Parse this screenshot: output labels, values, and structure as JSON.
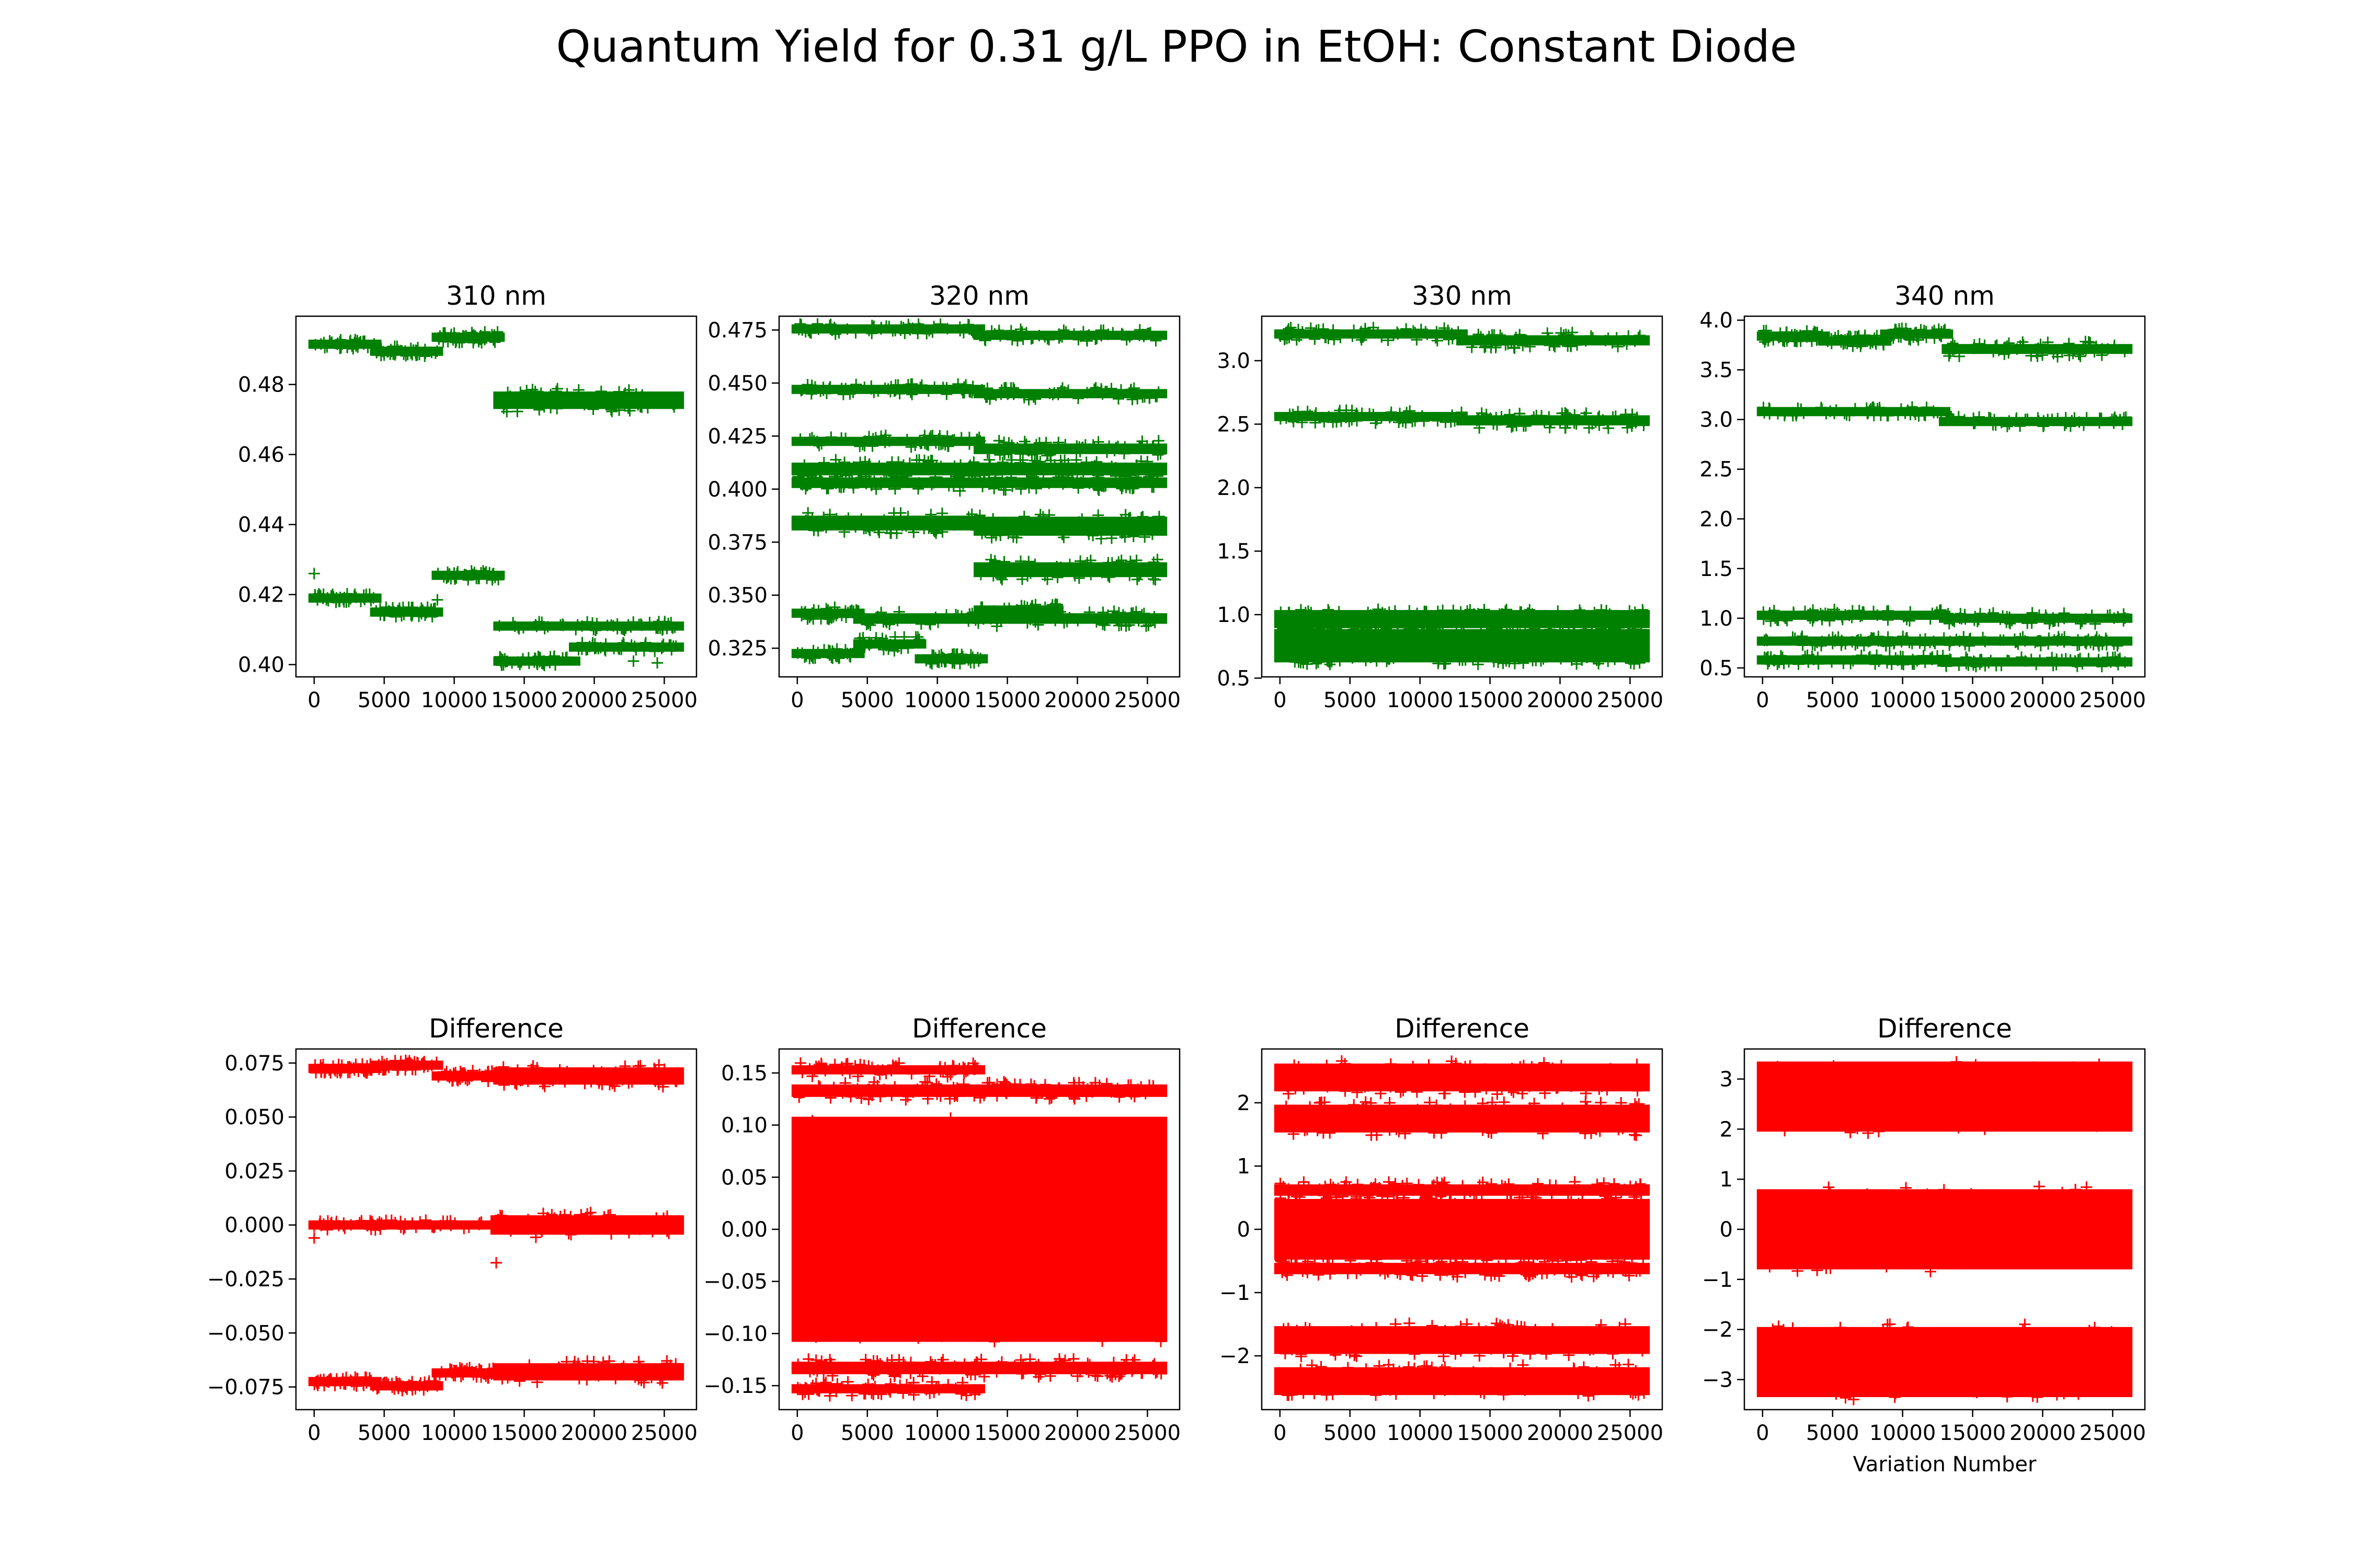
{
  "figure": {
    "title": "Quantum Yield for 0.31 g/L PPO in EtOH: Constant Diode",
    "colors": {
      "top": "#008000",
      "bottom": "#ff0000",
      "axes": "#000000"
    },
    "marker": "plus"
  },
  "chart_data": [
    {
      "type": "scatter",
      "title": "310 nm",
      "color": "#008000",
      "xlim": [
        -1300,
        27300
      ],
      "ylim": [
        0.3965,
        0.4995
      ],
      "xticks": [
        0,
        5000,
        10000,
        15000,
        20000,
        25000
      ],
      "xtick_labels": [
        "0",
        "5000",
        "10000",
        "15000",
        "20000",
        "25000"
      ],
      "yticks": [
        0.4,
        0.42,
        0.44,
        0.46,
        0.48
      ],
      "ytick_labels": [
        "0.40",
        "0.42",
        "0.44",
        "0.46",
        "0.48"
      ],
      "xlabel": "",
      "bands": [
        {
          "x": [
            0,
            4400
          ],
          "y": 0.4915,
          "spread": 0.0005
        },
        {
          "x": [
            4400,
            8800
          ],
          "y": 0.4895,
          "spread": 0.0006
        },
        {
          "x": [
            8800,
            13200
          ],
          "y": 0.4935,
          "spread": 0.0008
        },
        {
          "x": [
            13200,
            26000
          ],
          "y": 0.4755,
          "spread": 0.0025
        },
        {
          "x": [
            0,
            4400
          ],
          "y": 0.419,
          "spread": 0.0005
        },
        {
          "x": [
            4400,
            8800
          ],
          "y": 0.415,
          "spread": 0.0006
        },
        {
          "x": [
            8800,
            13200
          ],
          "y": 0.4255,
          "spread": 0.0005
        },
        {
          "x": [
            13200,
            26000
          ],
          "y": 0.411,
          "spread": 0.0005
        },
        {
          "x": [
            13200,
            18600
          ],
          "y": 0.401,
          "spread": 0.0006
        },
        {
          "x": [
            18600,
            26000
          ],
          "y": 0.405,
          "spread": 0.0005
        }
      ],
      "outliers": [
        {
          "x": 0,
          "y": 0.426
        },
        {
          "x": 8800,
          "y": 0.4185
        },
        {
          "x": 22800,
          "y": 0.401
        },
        {
          "x": 24500,
          "y": 0.4005
        }
      ]
    },
    {
      "type": "scatter",
      "title": "320 nm",
      "color": "#008000",
      "xlim": [
        -1300,
        27300
      ],
      "ylim": [
        0.3115,
        0.4815
      ],
      "xticks": [
        0,
        5000,
        10000,
        15000,
        20000,
        25000
      ],
      "xtick_labels": [
        "0",
        "5000",
        "10000",
        "15000",
        "20000",
        "25000"
      ],
      "yticks": [
        0.325,
        0.35,
        0.375,
        0.4,
        0.425,
        0.45,
        0.475
      ],
      "ytick_labels": [
        "0.325",
        "0.350",
        "0.375",
        "0.400",
        "0.425",
        "0.450",
        "0.475"
      ],
      "xlabel": "",
      "bands": [
        {
          "x": [
            0,
            13000
          ],
          "y": 0.4755,
          "spread": 0.0012
        },
        {
          "x": [
            13000,
            26000
          ],
          "y": 0.4725,
          "spread": 0.0015
        },
        {
          "x": [
            0,
            13000
          ],
          "y": 0.447,
          "spread": 0.0012
        },
        {
          "x": [
            13000,
            26000
          ],
          "y": 0.445,
          "spread": 0.0015
        },
        {
          "x": [
            0,
            13000
          ],
          "y": 0.4225,
          "spread": 0.0015
        },
        {
          "x": [
            13000,
            26000
          ],
          "y": 0.419,
          "spread": 0.0025
        },
        {
          "x": [
            0,
            26000
          ],
          "y": 0.4095,
          "spread": 0.003
        },
        {
          "x": [
            0,
            26000
          ],
          "y": 0.403,
          "spread": 0.0025
        },
        {
          "x": [
            0,
            13000
          ],
          "y": 0.384,
          "spread": 0.0035
        },
        {
          "x": [
            13000,
            26000
          ],
          "y": 0.3825,
          "spread": 0.0045
        },
        {
          "x": [
            13000,
            26000
          ],
          "y": 0.362,
          "spread": 0.0035
        },
        {
          "x": [
            0,
            4400
          ],
          "y": 0.3415,
          "spread": 0.0015
        },
        {
          "x": [
            4400,
            26000
          ],
          "y": 0.339,
          "spread": 0.0025
        },
        {
          "x": [
            13000,
            18600
          ],
          "y": 0.343,
          "spread": 0.0015
        },
        {
          "x": [
            0,
            4400
          ],
          "y": 0.3225,
          "spread": 0.001
        },
        {
          "x": [
            4400,
            8800
          ],
          "y": 0.327,
          "spread": 0.002
        },
        {
          "x": [
            8800,
            13200
          ],
          "y": 0.32,
          "spread": 0.001
        }
      ],
      "outliers": []
    },
    {
      "type": "scatter",
      "title": "330 nm",
      "color": "#008000",
      "xlim": [
        -1300,
        27300
      ],
      "ylim": [
        0.51,
        3.35
      ],
      "xticks": [
        0,
        5000,
        10000,
        15000,
        20000,
        25000
      ],
      "xtick_labels": [
        "0",
        "5000",
        "10000",
        "15000",
        "20000",
        "25000"
      ],
      "yticks": [
        0.5,
        1.0,
        1.5,
        2.0,
        2.5,
        3.0
      ],
      "ytick_labels": [
        "0.5",
        "1.0",
        "1.5",
        "2.0",
        "2.5",
        "3.0"
      ],
      "xlabel": "",
      "bands": [
        {
          "x": [
            0,
            13000
          ],
          "y": 3.21,
          "spread": 0.03
        },
        {
          "x": [
            13000,
            26000
          ],
          "y": 3.16,
          "spread": 0.04
        },
        {
          "x": [
            0,
            13000
          ],
          "y": 2.56,
          "spread": 0.03
        },
        {
          "x": [
            13000,
            26000
          ],
          "y": 2.53,
          "spread": 0.04
        },
        {
          "x": [
            0,
            26000
          ],
          "y": 1.0,
          "spread": 0.02
        },
        {
          "x": [
            0,
            26000
          ],
          "y": 0.93,
          "spread": 0.03
        },
        {
          "x": [
            0,
            26000
          ],
          "y": 0.85,
          "spread": 0.03
        },
        {
          "x": [
            0,
            26000
          ],
          "y": 0.78,
          "spread": 0.03
        },
        {
          "x": [
            0,
            26000
          ],
          "y": 0.72,
          "spread": 0.03
        },
        {
          "x": [
            0,
            26000
          ],
          "y": 0.66,
          "spread": 0.03
        }
      ],
      "outliers": []
    },
    {
      "type": "scatter",
      "title": "340 nm",
      "color": "#008000",
      "xlim": [
        -1300,
        27300
      ],
      "ylim": [
        0.41,
        4.04
      ],
      "xticks": [
        0,
        5000,
        10000,
        15000,
        20000,
        25000
      ],
      "xtick_labels": [
        "0",
        "5000",
        "10000",
        "15000",
        "20000",
        "25000"
      ],
      "yticks": [
        0.5,
        1.0,
        1.5,
        2.0,
        2.5,
        3.0,
        3.5,
        4.0
      ],
      "ytick_labels": [
        "0.5",
        "1.0",
        "1.5",
        "2.0",
        "2.5",
        "3.0",
        "3.5",
        "4.0"
      ],
      "xlabel": "",
      "bands": [
        {
          "x": [
            0,
            4400
          ],
          "y": 3.84,
          "spread": 0.03
        },
        {
          "x": [
            4400,
            8800
          ],
          "y": 3.79,
          "spread": 0.03
        },
        {
          "x": [
            8800,
            13200
          ],
          "y": 3.86,
          "spread": 0.03
        },
        {
          "x": [
            13200,
            26000
          ],
          "y": 3.71,
          "spread": 0.05
        },
        {
          "x": [
            0,
            13000
          ],
          "y": 3.08,
          "spread": 0.02
        },
        {
          "x": [
            13000,
            26000
          ],
          "y": 2.98,
          "spread": 0.02
        },
        {
          "x": [
            0,
            13000
          ],
          "y": 1.03,
          "spread": 0.03
        },
        {
          "x": [
            13000,
            26000
          ],
          "y": 1.0,
          "spread": 0.03
        },
        {
          "x": [
            0,
            26000
          ],
          "y": 0.77,
          "spread": 0.02
        },
        {
          "x": [
            0,
            13000
          ],
          "y": 0.58,
          "spread": 0.02
        },
        {
          "x": [
            13000,
            26000
          ],
          "y": 0.56,
          "spread": 0.02
        }
      ],
      "outliers": []
    },
    {
      "type": "scatter",
      "title": "Difference",
      "color": "#ff0000",
      "xlim": [
        -1300,
        27300
      ],
      "ylim": [
        -0.0855,
        0.0815
      ],
      "xticks": [
        0,
        5000,
        10000,
        15000,
        20000,
        25000
      ],
      "xtick_labels": [
        "0",
        "5000",
        "10000",
        "15000",
        "20000",
        "25000"
      ],
      "yticks": [
        -0.075,
        -0.05,
        -0.025,
        0.0,
        0.025,
        0.05,
        0.075
      ],
      "ytick_labels": [
        "−0.075",
        "−0.050",
        "−0.025",
        "0.000",
        "0.025",
        "0.050",
        "0.075"
      ],
      "xlabel": "",
      "bands": [
        {
          "x": [
            0,
            4400
          ],
          "y": 0.0725,
          "spread": 0.0008
        },
        {
          "x": [
            4400,
            8800
          ],
          "y": 0.074,
          "spread": 0.001
        },
        {
          "x": [
            8800,
            13200
          ],
          "y": 0.069,
          "spread": 0.0012
        },
        {
          "x": [
            13200,
            26000
          ],
          "y": 0.069,
          "spread": 0.004
        },
        {
          "x": [
            0,
            13000
          ],
          "y": 0.0,
          "spread": 0.001
        },
        {
          "x": [
            13000,
            26000
          ],
          "y": 0.0,
          "spread": 0.0045
        },
        {
          "x": [
            0,
            4400
          ],
          "y": -0.0725,
          "spread": 0.0008
        },
        {
          "x": [
            4400,
            8800
          ],
          "y": -0.0745,
          "spread": 0.001
        },
        {
          "x": [
            8800,
            13200
          ],
          "y": -0.0685,
          "spread": 0.0012
        },
        {
          "x": [
            13200,
            26000
          ],
          "y": -0.068,
          "spread": 0.004
        }
      ],
      "outliers": [
        {
          "x": 0,
          "y": -0.006
        },
        {
          "x": 13000,
          "y": -0.0175
        }
      ]
    },
    {
      "type": "scatter",
      "title": "Difference",
      "color": "#ff0000",
      "xlim": [
        -1300,
        27300
      ],
      "ylim": [
        -0.173,
        0.173
      ],
      "xticks": [
        0,
        5000,
        10000,
        15000,
        20000,
        25000
      ],
      "xtick_labels": [
        "0",
        "5000",
        "10000",
        "15000",
        "20000",
        "25000"
      ],
      "yticks": [
        -0.15,
        -0.1,
        -0.05,
        0.0,
        0.05,
        0.1,
        0.15
      ],
      "ytick_labels": [
        "−0.15",
        "−0.10",
        "−0.05",
        "0.00",
        "0.05",
        "0.10",
        "0.15"
      ],
      "xlabel": "",
      "bands": [
        {
          "x": [
            0,
            13000
          ],
          "y": 0.153,
          "spread": 0.004
        },
        {
          "x": [
            0,
            26000
          ],
          "y": 0.133,
          "spread": 0.006
        },
        {
          "x": [
            0,
            26000
          ],
          "y": 0.0,
          "spread": 0.108
        },
        {
          "x": [
            0,
            26000
          ],
          "y": -0.133,
          "spread": 0.006
        },
        {
          "x": [
            0,
            13000
          ],
          "y": -0.153,
          "spread": 0.004
        }
      ],
      "outliers": []
    },
    {
      "type": "scatter",
      "title": "Difference",
      "color": "#ff0000",
      "xlim": [
        -1300,
        27300
      ],
      "ylim": [
        -2.85,
        2.85
      ],
      "xticks": [
        0,
        5000,
        10000,
        15000,
        20000,
        25000
      ],
      "xtick_labels": [
        "0",
        "5000",
        "10000",
        "15000",
        "20000",
        "25000"
      ],
      "yticks": [
        -2,
        -1,
        0,
        1,
        2
      ],
      "ytick_labels": [
        "−2",
        "−1",
        "0",
        "1",
        "2"
      ],
      "xlabel": "",
      "bands": [
        {
          "x": [
            0,
            26000
          ],
          "y": 2.4,
          "spread": 0.22
        },
        {
          "x": [
            0,
            26000
          ],
          "y": 1.75,
          "spread": 0.22
        },
        {
          "x": [
            0,
            26000
          ],
          "y": 0.62,
          "spread": 0.09
        },
        {
          "x": [
            0,
            26000
          ],
          "y": 0.0,
          "spread": 0.48
        },
        {
          "x": [
            0,
            26000
          ],
          "y": -0.62,
          "spread": 0.09
        },
        {
          "x": [
            0,
            26000
          ],
          "y": -1.75,
          "spread": 0.22
        },
        {
          "x": [
            0,
            26000
          ],
          "y": -2.4,
          "spread": 0.22
        }
      ],
      "outliers": []
    },
    {
      "type": "scatter",
      "title": "Difference",
      "color": "#ff0000",
      "xlim": [
        -1300,
        27300
      ],
      "ylim": [
        -3.6,
        3.6
      ],
      "xticks": [
        0,
        5000,
        10000,
        15000,
        20000,
        25000
      ],
      "xtick_labels": [
        "0",
        "5000",
        "10000",
        "15000",
        "20000",
        "25000"
      ],
      "yticks": [
        -3,
        -2,
        -1,
        0,
        1,
        2,
        3
      ],
      "ytick_labels": [
        "−3",
        "−2",
        "−1",
        "0",
        "1",
        "2",
        "3"
      ],
      "xlabel": "Variation Number",
      "bands": [
        {
          "x": [
            0,
            26000
          ],
          "y": 2.65,
          "spread": 0.7
        },
        {
          "x": [
            0,
            26000
          ],
          "y": 0.0,
          "spread": 0.8
        },
        {
          "x": [
            0,
            26000
          ],
          "y": -2.65,
          "spread": 0.7
        }
      ],
      "outliers": []
    }
  ]
}
